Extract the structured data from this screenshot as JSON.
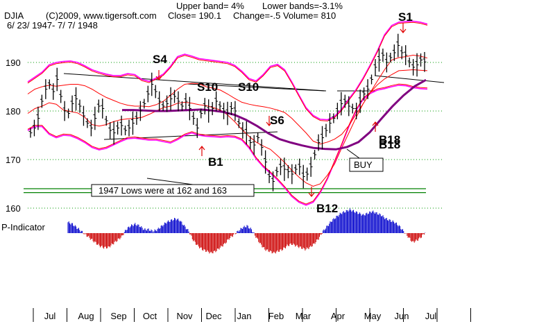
{
  "header": {
    "upper_band": "Upper band= 4%",
    "lower_band": "Lower bands=-3.1%",
    "symbol": "DJIA",
    "copyright": "(C)2009, www.tigersoft.com",
    "close": "Close=  190.1",
    "change": "Change=-.5",
    "volume": "Volume= 810",
    "date_range": "6/ 23/ 1947- 7/ 7/ 1948"
  },
  "chart_data": {
    "type": "line",
    "price_axis": {
      "ylim": [
        158,
        198
      ],
      "ticks": [
        160,
        170,
        180,
        190
      ]
    },
    "x_labels": [
      "Jul",
      "Aug",
      "Sep",
      "Oct",
      "Nov",
      "Dec",
      "Jan",
      "Feb",
      "Mar",
      "Apr",
      "May",
      "Jun",
      "Jul"
    ],
    "series": [
      {
        "name": "",
        "values": [
          175.5,
          176.5,
          178.5,
          182,
          184.5,
          185.5,
          184,
          186.5,
          183,
          180,
          179.5,
          181.5,
          182.5,
          181,
          179,
          177.5,
          176.5,
          178.5,
          181,
          180.5,
          178,
          176,
          175.5,
          176.5,
          177,
          176,
          176.5,
          177.5,
          178.5,
          180,
          181.5,
          183.5,
          185.5,
          184,
          182,
          181,
          181.5,
          182.5,
          183,
          182,
          181,
          182,
          180.5,
          178.5,
          176.5,
          179.5,
          181,
          180,
          180.5,
          182,
          181,
          180,
          179.5,
          180.5,
          180,
          177.5,
          176,
          175.5,
          173.5,
          173,
          174.5,
          172.5,
          169.5,
          166.5,
          165.5,
          167.5,
          168.5,
          168,
          167.5,
          167,
          168,
          168.5,
          166.5,
          167,
          168.5,
          171,
          173.5,
          174.5,
          176,
          177.5,
          178.5,
          180,
          181.5,
          182,
          181,
          180.5,
          180,
          182,
          183.5,
          184.5,
          186.5,
          189,
          190.5,
          191.5,
          190,
          191,
          192,
          193.5,
          192,
          191.5,
          190,
          189,
          189.5,
          190.5,
          190.1
        ]
      },
      {
        "name": "Upper band",
        "values": [
          186,
          187,
          188,
          189.5,
          190,
          190.2,
          190.3,
          190,
          189.3,
          188.5,
          188,
          187.6,
          187.3,
          187.3,
          187.7,
          187.5,
          186.5,
          186.1,
          186.8,
          187.6,
          189.2,
          191.2,
          191.7,
          191.3,
          190.8,
          190.6,
          190.4,
          190.2,
          190,
          189.4,
          188.2,
          186.7,
          186.2,
          187.5,
          189.2,
          189.6,
          188.5,
          186,
          183.3,
          180.7,
          179.1,
          178.3,
          178.2,
          178.9,
          180.4,
          182.5,
          184.4,
          186.8,
          189.5,
          192.4,
          195.7,
          197.6,
          198.3,
          198.4,
          198.5,
          198.3,
          197.9
        ]
      },
      {
        "name": "Lower band",
        "values": [
          176,
          176.8,
          176.8,
          175.2,
          174.5,
          175,
          174.9,
          174.3,
          173.5,
          172.5,
          172,
          172.3,
          173,
          173.7,
          174.3,
          174.4,
          174.2,
          174,
          174,
          173.7,
          173.4,
          174.1,
          175,
          175.5,
          175,
          174.8,
          174.7,
          174.6,
          174.7,
          174.6,
          174,
          172.4,
          170.2,
          168.5,
          167.2,
          165.8,
          164.2,
          162.4,
          161.2,
          160.6,
          161.2,
          163.2,
          166,
          169.5,
          173,
          176.8,
          180,
          182.4,
          183.6,
          184.3,
          184.6,
          185,
          185.3,
          185.2,
          184.8,
          184.6,
          184.5
        ]
      },
      {
        "name": "",
        "values": [
          183.5,
          184.5,
          185,
          185.3,
          185.1,
          185.3,
          185.5,
          185.5,
          185.2,
          184.5,
          183.6,
          182.8,
          182.2,
          181.6,
          181.2,
          181,
          181,
          180.9,
          181.3,
          182,
          183.2,
          184.5,
          185.5,
          185.7,
          185.6,
          185,
          184.7,
          184.3,
          183.5,
          182.6,
          181.8,
          181.4,
          181.1,
          180.9,
          180.6,
          180.2,
          179.7,
          178.5,
          177,
          175.5,
          173.8,
          173.2,
          173.6,
          174.2,
          175.2,
          177,
          179.3,
          181.5,
          183.8,
          186.2,
          188.5,
          190.5,
          191,
          191.2,
          191.5,
          191.3,
          190.9
        ]
      },
      {
        "name": "",
        "values": [
          179.5,
          180.5,
          181,
          181.7,
          181.4,
          180.2,
          179.9,
          179.6,
          178.7,
          177.2,
          176.9,
          177.2,
          177.8,
          178.2,
          178.4,
          178.5,
          178.7,
          179.3,
          180,
          180.7,
          181,
          181.6,
          181.8,
          181.6,
          181.3,
          181.1,
          180.7,
          180.2,
          179.2,
          177.8,
          176.2,
          174.8,
          173.6,
          172.8,
          172.1,
          170.8,
          169.4,
          167.8,
          166.4,
          165.2,
          164.5,
          165,
          166.8,
          169.1,
          172.4,
          175.5,
          178.6,
          181.5,
          183.8,
          185.4,
          186.6,
          187.5,
          188.3,
          188.4,
          188.5,
          188.4,
          188.3
        ]
      },
      {
        "name": "",
        "values": [
          180.2,
          180.2,
          180.1,
          180,
          180,
          180.1,
          180.2,
          180.3,
          180.1,
          179.8,
          179.2,
          178.2,
          176.9,
          175.4,
          174.2,
          173.5,
          172.9,
          172.4,
          172.2,
          172.1,
          172.6,
          173.6,
          175.6,
          178.3,
          180.9,
          183.2,
          185.1,
          186.4
        ]
      },
      {
        "name": "P-Indicator",
        "values": [
          3,
          2.5,
          1.5,
          0.5,
          -0.5,
          -1.5,
          -2.5,
          -3.5,
          -4,
          -4,
          -3,
          -2,
          -1,
          1,
          2,
          2.5,
          2,
          1,
          1,
          0.5,
          1,
          2,
          3,
          3.5,
          4,
          3.5,
          2,
          0.5,
          -2,
          -3.5,
          -4.5,
          -5,
          -5.5,
          -5,
          -4,
          -3,
          -1.5,
          -0.5,
          0.5,
          1.5,
          2,
          1,
          -1,
          -3,
          -4.5,
          -5,
          -5.5,
          -5,
          -4.5,
          -3.5,
          -3,
          -3.5,
          -4,
          -4.5,
          -4,
          -3,
          -1.5,
          0.5,
          2,
          3.5,
          4.5,
          5.5,
          6,
          6.5,
          6,
          5.5,
          5,
          5.5,
          6,
          5.5,
          5,
          4,
          3.5,
          3,
          2,
          0.5,
          -1,
          -2.5,
          -2,
          -1,
          0.5
        ]
      }
    ],
    "annotations": [
      {
        "text": "S4",
        "x_index": 30,
        "price": 189.5
      },
      {
        "text": "S10",
        "x_index": 39,
        "price": 184.7
      },
      {
        "text": "S10",
        "x_index": 51,
        "price": 184.7
      },
      {
        "text": "S6",
        "x_index": 58,
        "price": 177.2
      },
      {
        "text": "B1",
        "x_index": 43,
        "price": 170
      },
      {
        "text": "B12",
        "x_index": 67,
        "price": 160.1
      },
      {
        "text": "B18",
        "x_index": 88,
        "price": 173.5
      },
      {
        "text": "B18",
        "x_index": 88,
        "price": 172.8
      },
      {
        "text": "S1",
        "x_index": 97,
        "price": 196.5
      },
      {
        "text": "BUY",
        "x_index": 77,
        "price": 170
      }
    ],
    "callout": "1947 Lows were at 162 and 163",
    "indicator_label": "P-Indicator",
    "colors": {
      "price": "#000000",
      "band": "#ff00ff",
      "ma": "#ff0000",
      "ma_long": "#800080",
      "pos": "#0000cc",
      "neg": "#cc0000",
      "grid": "#009900",
      "support": "#008000",
      "trend": "#000000"
    }
  }
}
